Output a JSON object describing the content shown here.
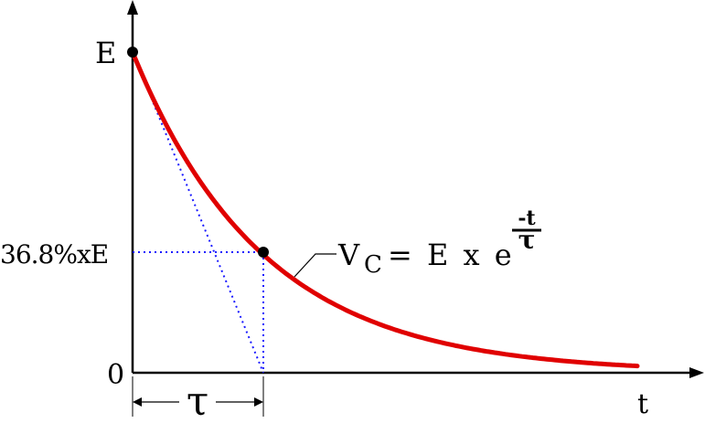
{
  "labels": {
    "y_top": "E",
    "y_mid": "36.8%xE",
    "y_zero": "0",
    "x_axis": "t",
    "tau": "τ"
  },
  "equation": {
    "v": "V",
    "sub": "C",
    "rhs": "= E x e",
    "exp_num": "-t",
    "exp_den": "τ"
  },
  "colors": {
    "curve": "#e00000",
    "guide": "#1a1aff",
    "axis": "#000000"
  }
}
